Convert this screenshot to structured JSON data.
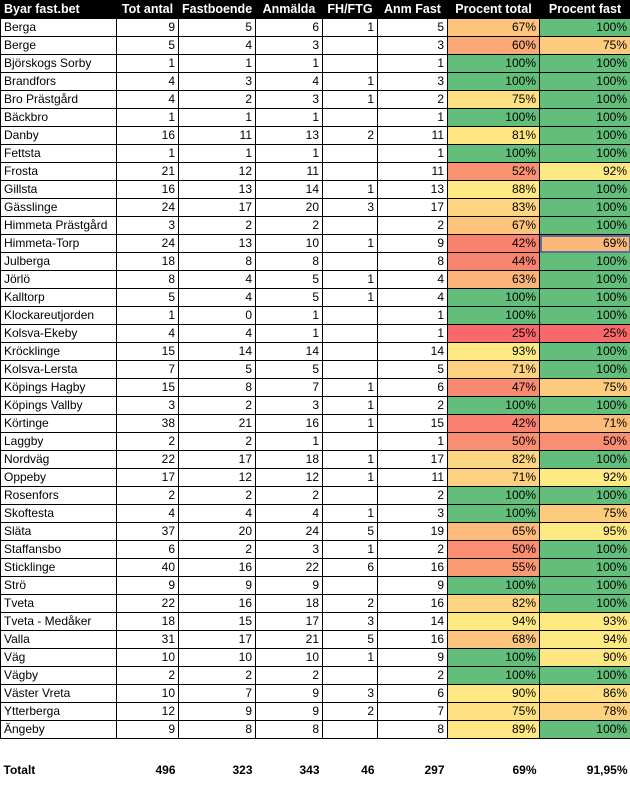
{
  "sheet": {
    "headers": [
      "Byar fast.bet",
      "Tot antal",
      "Fastboende",
      "Anmälda",
      "FH/FTG",
      "Anm Fast",
      "Procent total",
      "Procent fast"
    ],
    "rows": [
      {
        "name": "Berga",
        "tot": "9",
        "fast": "5",
        "anm": "6",
        "fh": "1",
        "anmfast": "5",
        "pt": "67%",
        "pf": "100%",
        "pt_color": "#fdc47d",
        "pf_color": "#63be7b"
      },
      {
        "name": "Berge",
        "tot": "5",
        "fast": "4",
        "anm": "3",
        "fh": "",
        "anmfast": "3",
        "pt": "60%",
        "pf": "75%",
        "pt_color": "#fba877",
        "pf_color": "#fdcb7e"
      },
      {
        "name": "Björskogs Sorby",
        "tot": "1",
        "fast": "1",
        "anm": "1",
        "fh": "",
        "anmfast": "1",
        "pt": "100%",
        "pf": "100%",
        "pt_color": "#63be7b",
        "pf_color": "#63be7b"
      },
      {
        "name": "Brandfors",
        "tot": "4",
        "fast": "3",
        "anm": "4",
        "fh": "1",
        "anmfast": "3",
        "pt": "100%",
        "pf": "100%",
        "pt_color": "#63be7b",
        "pf_color": "#63be7b"
      },
      {
        "name": "Bro Prästgård",
        "tot": "4",
        "fast": "2",
        "anm": "3",
        "fh": "1",
        "anmfast": "2",
        "pt": "75%",
        "pf": "100%",
        "pt_color": "#fee082",
        "pf_color": "#63be7b"
      },
      {
        "name": "Bäckbro",
        "tot": "1",
        "fast": "1",
        "anm": "1",
        "fh": "",
        "anmfast": "1",
        "pt": "100%",
        "pf": "100%",
        "pt_color": "#63be7b",
        "pf_color": "#63be7b"
      },
      {
        "name": "Danby",
        "tot": "16",
        "fast": "11",
        "anm": "13",
        "fh": "2",
        "anmfast": "11",
        "pt": "81%",
        "pf": "100%",
        "pt_color": "#fee783",
        "pf_color": "#63be7b"
      },
      {
        "name": "Fettsta",
        "tot": "1",
        "fast": "1",
        "anm": "1",
        "fh": "",
        "anmfast": "1",
        "pt": "100%",
        "pf": "100%",
        "pt_color": "#63be7b",
        "pf_color": "#63be7b"
      },
      {
        "name": "Frosta",
        "tot": "21",
        "fast": "12",
        "anm": "11",
        "fh": "",
        "anmfast": "11",
        "pt": "52%",
        "pf": "92%",
        "pt_color": "#f99273",
        "pf_color": "#feea83"
      },
      {
        "name": "Gillsta",
        "tot": "16",
        "fast": "13",
        "anm": "14",
        "fh": "1",
        "anmfast": "13",
        "pt": "88%",
        "pf": "100%",
        "pt_color": "#fee883",
        "pf_color": "#63be7b"
      },
      {
        "name": "Gässlinge",
        "tot": "24",
        "fast": "17",
        "anm": "20",
        "fh": "3",
        "anmfast": "17",
        "pt": "83%",
        "pf": "100%",
        "pt_color": "#fed580",
        "pf_color": "#63be7b"
      },
      {
        "name": "Himmeta Prästgård",
        "tot": "3",
        "fast": "2",
        "anm": "2",
        "fh": "",
        "anmfast": "2",
        "pt": "67%",
        "pf": "100%",
        "pt_color": "#fdc47d",
        "pf_color": "#63be7b"
      },
      {
        "name": "Himmeta-Torp",
        "tot": "24",
        "fast": "13",
        "anm": "10",
        "fh": "1",
        "anmfast": "9",
        "pt": "42%",
        "pf": "69%",
        "pt_color": "#f8816f",
        "pf_color": "#fcb87a"
      },
      {
        "name": "Julberga",
        "tot": "18",
        "fast": "8",
        "anm": "8",
        "fh": "",
        "anmfast": "8",
        "pt": "44%",
        "pf": "100%",
        "pt_color": "#f88470",
        "pf_color": "#63be7b"
      },
      {
        "name": "Jörlö",
        "tot": "8",
        "fast": "4",
        "anm": "5",
        "fh": "1",
        "anmfast": "4",
        "pt": "63%",
        "pf": "100%",
        "pt_color": "#fcb379",
        "pf_color": "#63be7b"
      },
      {
        "name": "Kalltorp",
        "tot": "5",
        "fast": "4",
        "anm": "5",
        "fh": "1",
        "anmfast": "4",
        "pt": "100%",
        "pf": "100%",
        "pt_color": "#63be7b",
        "pf_color": "#63be7b"
      },
      {
        "name": "Klockareutjorden",
        "tot": "1",
        "fast": "0",
        "anm": "1",
        "fh": "",
        "anmfast": "1",
        "pt": "100%",
        "pf": "100%",
        "pt_color": "#63be7b",
        "pf_color": "#63be7b"
      },
      {
        "name": "Kolsva-Ekeby",
        "tot": "4",
        "fast": "4",
        "anm": "1",
        "fh": "",
        "anmfast": "1",
        "pt": "25%",
        "pf": "25%",
        "pt_color": "#f8696b",
        "pf_color": "#f8696b"
      },
      {
        "name": "Kröcklinge",
        "tot": "15",
        "fast": "14",
        "anm": "14",
        "fh": "",
        "anmfast": "14",
        "pt": "93%",
        "pf": "100%",
        "pt_color": "#feea83",
        "pf_color": "#63be7b"
      },
      {
        "name": "Kolsva-Lersta",
        "tot": "7",
        "fast": "5",
        "anm": "5",
        "fh": "",
        "anmfast": "5",
        "pt": "71%",
        "pf": "100%",
        "pt_color": "#fdd17f",
        "pf_color": "#63be7b"
      },
      {
        "name": "Köpings Hagby",
        "tot": "15",
        "fast": "8",
        "anm": "7",
        "fh": "1",
        "anmfast": "6",
        "pt": "47%",
        "pf": "75%",
        "pt_color": "#f98971",
        "pf_color": "#fdcb7e"
      },
      {
        "name": "Köpings Vallby",
        "tot": "3",
        "fast": "2",
        "anm": "3",
        "fh": "1",
        "anmfast": "2",
        "pt": "100%",
        "pf": "100%",
        "pt_color": "#63be7b",
        "pf_color": "#63be7b"
      },
      {
        "name": "Körtinge",
        "tot": "38",
        "fast": "21",
        "anm": "16",
        "fh": "1",
        "anmfast": "15",
        "pt": "42%",
        "pf": "71%",
        "pt_color": "#f8816f",
        "pf_color": "#fcbd7b"
      },
      {
        "name": "Laggby",
        "tot": "2",
        "fast": "2",
        "anm": "1",
        "fh": "",
        "anmfast": "1",
        "pt": "50%",
        "pf": "50%",
        "pt_color": "#f98e72",
        "pf_color": "#f98e72"
      },
      {
        "name": "Nordväg",
        "tot": "22",
        "fast": "17",
        "anm": "18",
        "fh": "1",
        "anmfast": "17",
        "pt": "82%",
        "pf": "100%",
        "pt_color": "#fed580",
        "pf_color": "#63be7b"
      },
      {
        "name": "Oppeby",
        "tot": "17",
        "fast": "12",
        "anm": "12",
        "fh": "1",
        "anmfast": "11",
        "pt": "71%",
        "pf": "92%",
        "pt_color": "#fdd17f",
        "pf_color": "#feea83"
      },
      {
        "name": "Rosenfors",
        "tot": "2",
        "fast": "2",
        "anm": "2",
        "fh": "",
        "anmfast": "2",
        "pt": "100%",
        "pf": "100%",
        "pt_color": "#63be7b",
        "pf_color": "#63be7b"
      },
      {
        "name": "Skoftesta",
        "tot": "4",
        "fast": "4",
        "anm": "4",
        "fh": "1",
        "anmfast": "3",
        "pt": "100%",
        "pf": "75%",
        "pt_color": "#63be7b",
        "pf_color": "#fdcb7e"
      },
      {
        "name": "Släta",
        "tot": "37",
        "fast": "20",
        "anm": "24",
        "fh": "5",
        "anmfast": "19",
        "pt": "65%",
        "pf": "95%",
        "pt_color": "#fcbb7b",
        "pf_color": "#feea83"
      },
      {
        "name": "Staffansbo",
        "tot": "6",
        "fast": "2",
        "anm": "3",
        "fh": "1",
        "anmfast": "2",
        "pt": "50%",
        "pf": "100%",
        "pt_color": "#f98e72",
        "pf_color": "#63be7b"
      },
      {
        "name": "Sticklinge",
        "tot": "40",
        "fast": "16",
        "anm": "22",
        "fh": "6",
        "anmfast": "16",
        "pt": "55%",
        "pf": "100%",
        "pt_color": "#fa9a75",
        "pf_color": "#63be7b"
      },
      {
        "name": "Strö",
        "tot": "9",
        "fast": "9",
        "anm": "9",
        "fh": "",
        "anmfast": "9",
        "pt": "100%",
        "pf": "100%",
        "pt_color": "#63be7b",
        "pf_color": "#63be7b"
      },
      {
        "name": "Tveta",
        "tot": "22",
        "fast": "16",
        "anm": "18",
        "fh": "2",
        "anmfast": "16",
        "pt": "82%",
        "pf": "100%",
        "pt_color": "#fed580",
        "pf_color": "#63be7b"
      },
      {
        "name": "Tveta - Medåker",
        "tot": "18",
        "fast": "15",
        "anm": "17",
        "fh": "3",
        "anmfast": "14",
        "pt": "94%",
        "pf": "93%",
        "pt_color": "#feea83",
        "pf_color": "#feea83"
      },
      {
        "name": "Valla",
        "tot": "31",
        "fast": "17",
        "anm": "21",
        "fh": "5",
        "anmfast": "16",
        "pt": "68%",
        "pf": "94%",
        "pt_color": "#fdc47d",
        "pf_color": "#feea83"
      },
      {
        "name": "Väg",
        "tot": "10",
        "fast": "10",
        "anm": "10",
        "fh": "1",
        "anmfast": "9",
        "pt": "100%",
        "pf": "90%",
        "pt_color": "#63be7b",
        "pf_color": "#fee783"
      },
      {
        "name": "Vägby",
        "tot": "2",
        "fast": "2",
        "anm": "2",
        "fh": "",
        "anmfast": "2",
        "pt": "100%",
        "pf": "100%",
        "pt_color": "#63be7b",
        "pf_color": "#63be7b"
      },
      {
        "name": "Väster Vreta",
        "tot": "10",
        "fast": "7",
        "anm": "9",
        "fh": "3",
        "anmfast": "6",
        "pt": "90%",
        "pf": "86%",
        "pt_color": "#fee883",
        "pf_color": "#fee082"
      },
      {
        "name": "Ytterberga",
        "tot": "12",
        "fast": "9",
        "anm": "9",
        "fh": "2",
        "anmfast": "7",
        "pt": "75%",
        "pf": "78%",
        "pt_color": "#fee082",
        "pf_color": "#fdd17f"
      },
      {
        "name": "Ängeby",
        "tot": "9",
        "fast": "8",
        "anm": "8",
        "fh": "",
        "anmfast": "8",
        "pt": "89%",
        "pf": "100%",
        "pt_color": "#fee883",
        "pf_color": "#63be7b"
      }
    ],
    "selected_row": 12,
    "totals": {
      "label": "Totalt",
      "tot": "496",
      "fast": "323",
      "anm": "343",
      "fh": "46",
      "anmfast": "297",
      "pt": "69%",
      "pf": "91,95%"
    }
  }
}
